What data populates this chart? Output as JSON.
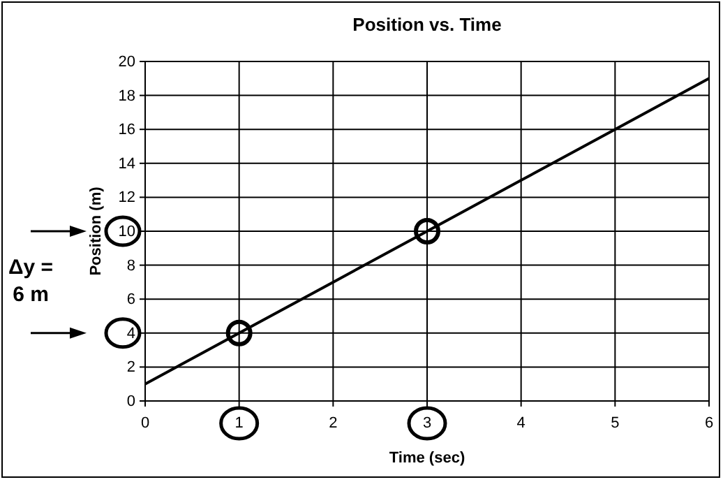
{
  "chart_data": {
    "type": "line",
    "title": "Position vs. Time",
    "xlabel": "Time (sec)",
    "ylabel": "Position (m)",
    "xlim": [
      0,
      6
    ],
    "xticks": [
      0,
      1,
      2,
      3,
      4,
      5,
      6
    ],
    "ylim": [
      0,
      20
    ],
    "yticks": [
      0,
      2,
      4,
      6,
      8,
      10,
      12,
      14,
      16,
      18,
      20
    ],
    "grid": true,
    "series": [
      {
        "type": "line",
        "color": "#000000",
        "x": [
          0,
          1,
          2,
          3,
          4,
          5,
          6
        ],
        "values": [
          1,
          4,
          7,
          10,
          13,
          16,
          19
        ]
      },
      {
        "type": "scatter",
        "color": "#000000",
        "x": [
          1,
          3
        ],
        "values": [
          4,
          10
        ],
        "marker": "circle"
      }
    ],
    "annotations": [
      "Δy =\n6 m"
    ]
  }
}
